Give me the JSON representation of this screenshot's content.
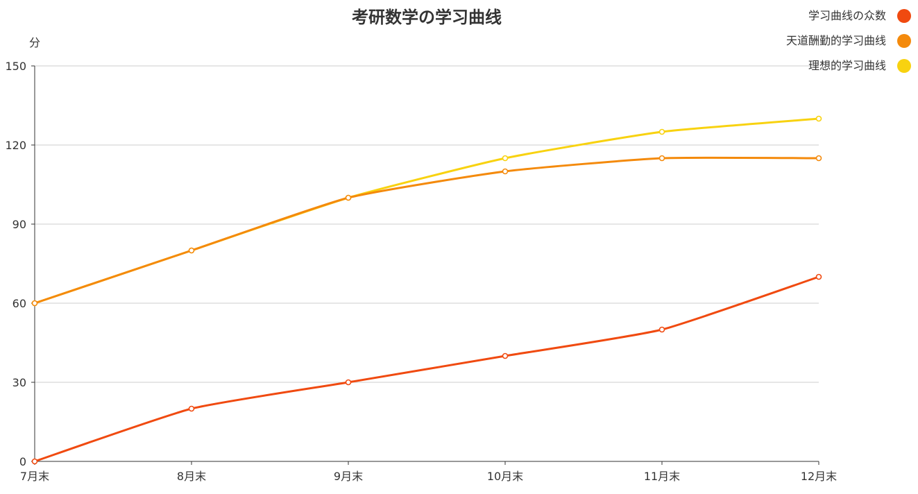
{
  "chart_data": {
    "type": "line",
    "title": "考研数学の学习曲线",
    "ylabel": "分",
    "xlabel": "",
    "categories": [
      "7月末",
      "8月末",
      "9月末",
      "10月末",
      "11月末",
      "12月末"
    ],
    "ylim": [
      0,
      150
    ],
    "yticks": [
      0,
      30,
      60,
      90,
      120,
      150
    ],
    "grid": true,
    "smooth": true,
    "legend_position": "top-right",
    "series": [
      {
        "name": "学习曲线の众数",
        "values": [
          0,
          20,
          30,
          40,
          50,
          70
        ],
        "color": "#f04a10"
      },
      {
        "name": "天道酬勤的学习曲线",
        "values": [
          60,
          80,
          100,
          110,
          115,
          115
        ],
        "color": "#f48a0c"
      },
      {
        "name": "理想的学习曲线",
        "values": [
          60,
          80,
          100,
          115,
          125,
          130
        ],
        "color": "#f8d210"
      }
    ]
  }
}
